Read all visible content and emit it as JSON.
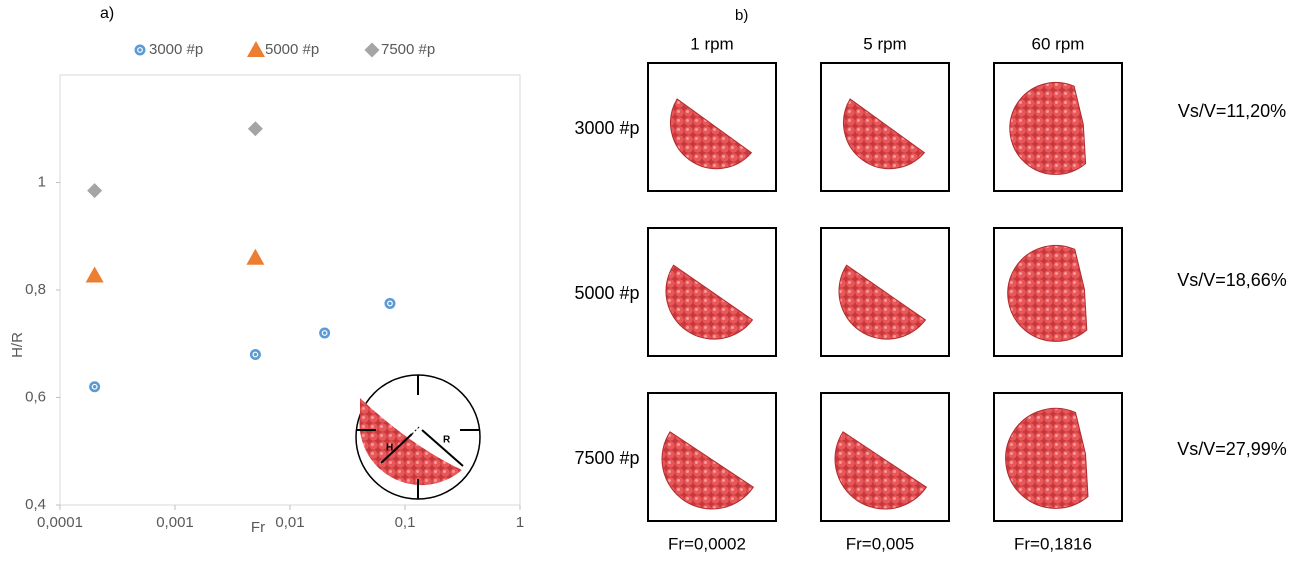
{
  "chart_data": {
    "type": "scatter",
    "panel_label": "a)",
    "x_label": "Fr",
    "y_label": "H/R",
    "xscale": "log",
    "xlim": [
      0.0001,
      1
    ],
    "xticks": [
      {
        "value": 0.0001,
        "label": "0,0001"
      },
      {
        "value": 0.001,
        "label": "0,001"
      },
      {
        "value": 0.01,
        "label": "0,01"
      },
      {
        "value": 0.1,
        "label": "0,1"
      },
      1
    ],
    "ylim": [
      0.4,
      1.2
    ],
    "yticks": [
      {
        "value": 0.4,
        "label": "0,4"
      },
      {
        "value": 0.6,
        "label": "0,6"
      },
      {
        "value": 0.8,
        "label": "0,8"
      },
      1
    ],
    "legend": "top",
    "series": [
      {
        "name": "3000 #p",
        "color": "#5b9bd5",
        "marker": "circle",
        "x": [
          0.0002,
          0.005,
          0.02,
          0.074
        ],
        "values": [
          0.62,
          0.68,
          0.72,
          0.775
        ]
      },
      {
        "name": "5000 #p",
        "color": "#ed7d31",
        "marker": "triangle",
        "x": [
          0.0002,
          0.005
        ],
        "values": [
          0.827,
          0.86
        ]
      },
      {
        "name": "7500 #p",
        "color": "#a5a5a5",
        "marker": "diamond",
        "x": [
          0.0002,
          0.005
        ],
        "values": [
          0.985,
          1.1
        ]
      }
    ]
  },
  "inset": {
    "h_label": "H",
    "r_label": "R"
  },
  "panel_b": {
    "panel_label": "b)",
    "columns": [
      "1 rpm",
      "5 rpm",
      "60 rpm"
    ],
    "rows": [
      "3000 #p",
      "5000 #p",
      "7500 #p"
    ],
    "ratios": [
      "Vs/V=11,20%",
      "Vs/V=18,66%",
      "Vs/V=27,99%"
    ],
    "froude": [
      "Fr=0,0002",
      "Fr=0,005",
      "Fr=0,1816"
    ]
  }
}
